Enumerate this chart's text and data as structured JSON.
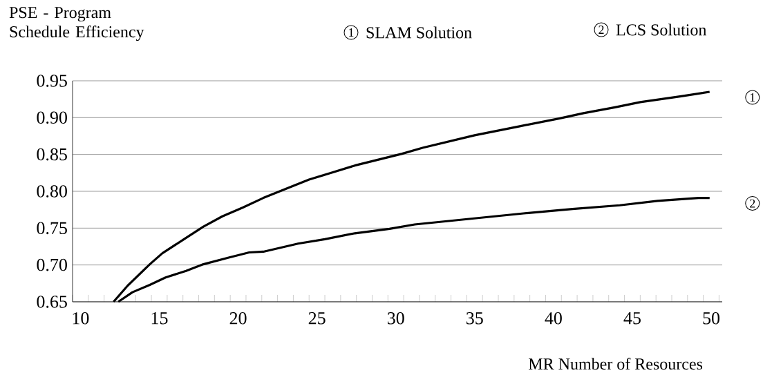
{
  "chart_data": {
    "type": "line",
    "ylabel": "PSE - Program Schedule Efficiency",
    "xlabel": "MR Number of Resources",
    "xlim": [
      9.5,
      50.7
    ],
    "xticks": [
      {
        "value": 10,
        "label": "10"
      },
      {
        "value": 15,
        "label": "15"
      },
      {
        "value": 20,
        "label": "20"
      },
      {
        "value": 25,
        "label": "25"
      },
      {
        "value": 30,
        "label": "30"
      },
      {
        "value": 35,
        "label": "35"
      },
      {
        "value": 40,
        "label": "40"
      },
      {
        "value": 45,
        "label": "45"
      },
      {
        "value": 50,
        "label": "50"
      }
    ],
    "ylim": [
      0.65,
      0.95
    ],
    "yticks": [
      {
        "value": 0.65,
        "label": "0.65"
      },
      {
        "value": 0.7,
        "label": "0.70"
      },
      {
        "value": 0.75,
        "label": "0.75"
      },
      {
        "value": 0.8,
        "label": "0.80"
      },
      {
        "value": 0.85,
        "label": "0.85"
      },
      {
        "value": 0.9,
        "label": "0.90"
      },
      {
        "value": 0.95,
        "label": "0.95"
      }
    ],
    "grid": "y",
    "legend": "top",
    "marker": "none",
    "line_style": "solid",
    "series": [
      {
        "name": "SLAM Solution",
        "color": "#000000",
        "x": [
          12.1,
          13.0,
          14.4,
          15.2,
          16.5,
          17.8,
          19.0,
          20.3,
          21.6,
          23.1,
          24.5,
          25.9,
          27.4,
          28.9,
          30.4,
          31.7,
          35.0,
          37.8,
          40.4,
          41.9,
          43.9,
          45.5,
          48.1,
          49.9
        ],
        "values": [
          0.65,
          0.672,
          0.701,
          0.716,
          0.734,
          0.752,
          0.766,
          0.778,
          0.791,
          0.804,
          0.816,
          0.825,
          0.835,
          0.843,
          0.851,
          0.859,
          0.876,
          0.888,
          0.899,
          0.906,
          0.914,
          0.921,
          0.929,
          0.935
        ]
      },
      {
        "name": "LCS Solution",
        "color": "#000000",
        "x": [
          12.4,
          13.3,
          14.4,
          15.4,
          16.7,
          17.8,
          19.4,
          20.7,
          21.6,
          23.8,
          25.5,
          27.4,
          29.6,
          31.2,
          33.5,
          35.8,
          38.1,
          41.2,
          44.2,
          46.6,
          49.2,
          49.9
        ],
        "values": [
          0.65,
          0.663,
          0.673,
          0.683,
          0.692,
          0.701,
          0.71,
          0.717,
          0.718,
          0.729,
          0.735,
          0.743,
          0.749,
          0.755,
          0.76,
          0.765,
          0.77,
          0.776,
          0.781,
          0.787,
          0.791,
          0.791
        ]
      }
    ],
    "annotations": [
      "1",
      "2"
    ]
  }
}
